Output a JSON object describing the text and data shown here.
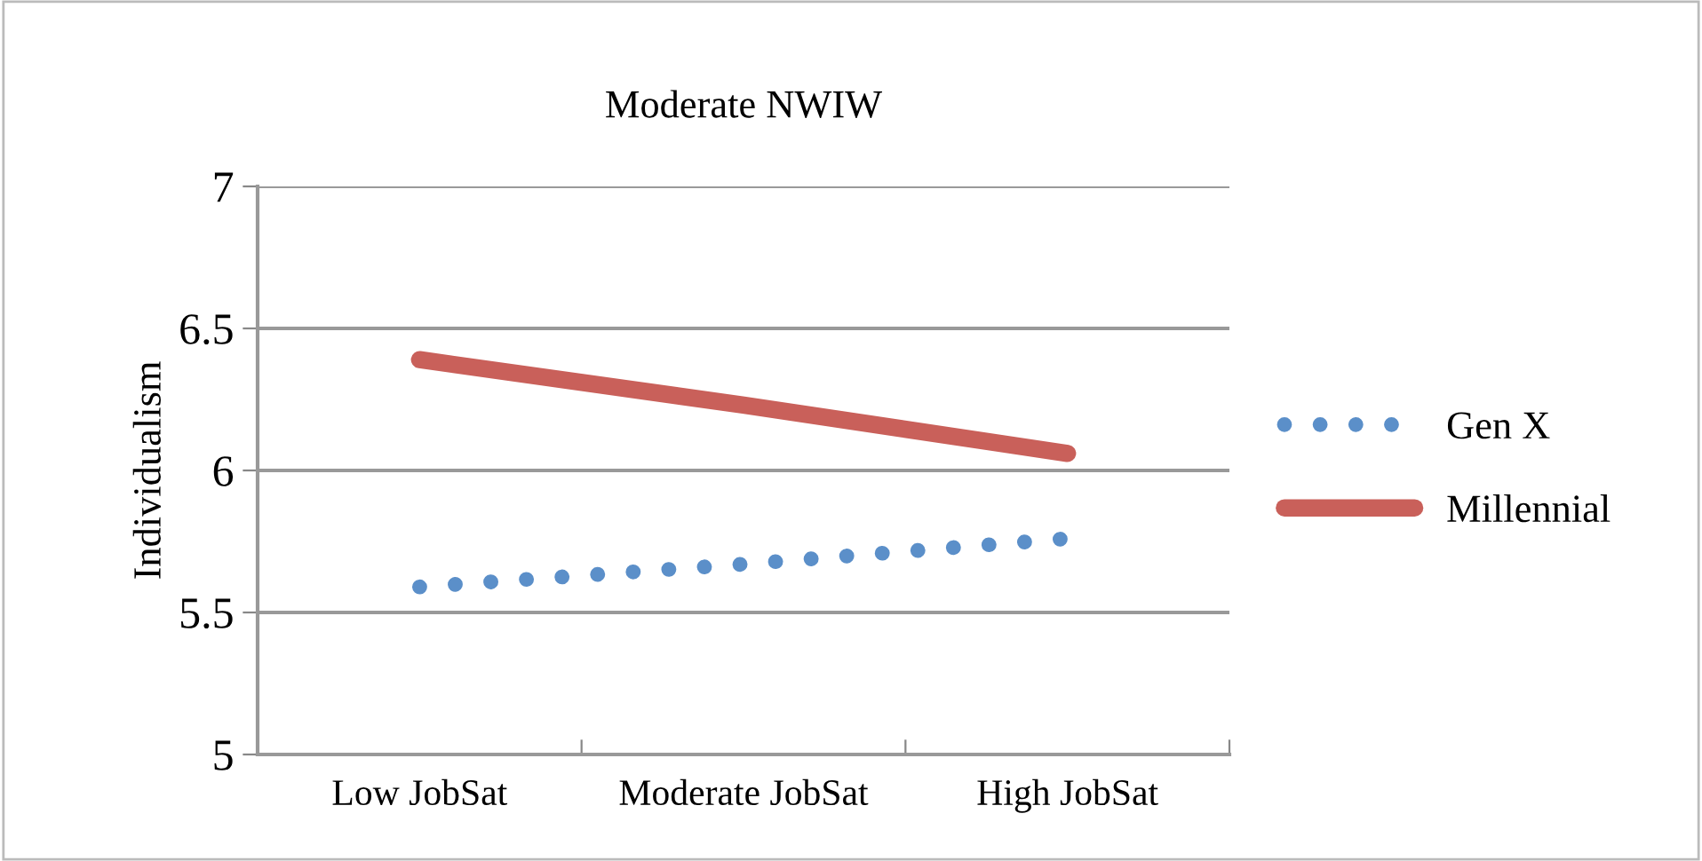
{
  "chart_data": {
    "type": "line",
    "title": "Moderate NWIW",
    "ylabel": "Individualism",
    "categories": [
      "Low JobSat",
      "Moderate JobSat",
      "High JobSat"
    ],
    "series": [
      {
        "name": "Gen X",
        "color": "#5b8fc9",
        "values": [
          5.59,
          5.67,
          5.76
        ],
        "line_style": "dotted"
      },
      {
        "name": "Millennial",
        "color": "#c9605a",
        "values": [
          6.39,
          6.23,
          6.06
        ],
        "line_style": "solid"
      }
    ],
    "ylim": [
      5,
      7
    ],
    "yticks": [
      5,
      5.5,
      6,
      6.5,
      7
    ],
    "grid": "y",
    "legend": "right",
    "marker": "none"
  }
}
